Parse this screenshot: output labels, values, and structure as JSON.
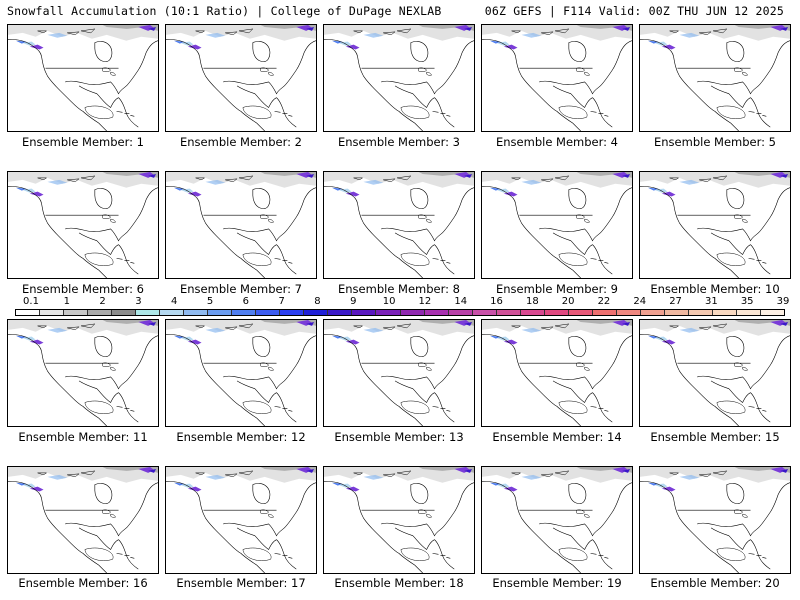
{
  "header": {
    "title_left": "Snowfall Accumulation (10:1 Ratio) | College of DuPage NEXLAB",
    "title_right": "06Z GEFS | F114 Valid: 00Z THU JUN 12 2025"
  },
  "caption_prefix": "Ensemble Member: ",
  "members": [
    "1",
    "2",
    "3",
    "4",
    "5",
    "6",
    "7",
    "8",
    "9",
    "10",
    "11",
    "12",
    "13",
    "14",
    "15",
    "16",
    "17",
    "18",
    "19",
    "20"
  ],
  "colorbar": {
    "labels": [
      "0.1",
      "1",
      "2",
      "3",
      "4",
      "5",
      "6",
      "7",
      "8",
      "9",
      "10",
      "12",
      "14",
      "16",
      "18",
      "20",
      "22",
      "24",
      "27",
      "31",
      "35",
      "39"
    ],
    "colors": [
      "#ffffff",
      "#e6e6e6",
      "#c8c8c8",
      "#a9a9a9",
      "#8c8c8c",
      "#aee8e8",
      "#b4d8f0",
      "#8fbaf0",
      "#6a9cf0",
      "#4f7ef0",
      "#3c5cf0",
      "#2a3ef0",
      "#2020d8",
      "#3a18c8",
      "#5a18c0",
      "#7a20b8",
      "#9028b0",
      "#a830b0",
      "#b840a8",
      "#c850a8",
      "#d05098",
      "#d84890",
      "#e04880",
      "#e85878",
      "#ee7070",
      "#f08880",
      "#f0a090",
      "#f0b8a0",
      "#f4c8b0",
      "#f8d8c0",
      "#fbe6d4",
      "#fdf0e4"
    ]
  }
}
